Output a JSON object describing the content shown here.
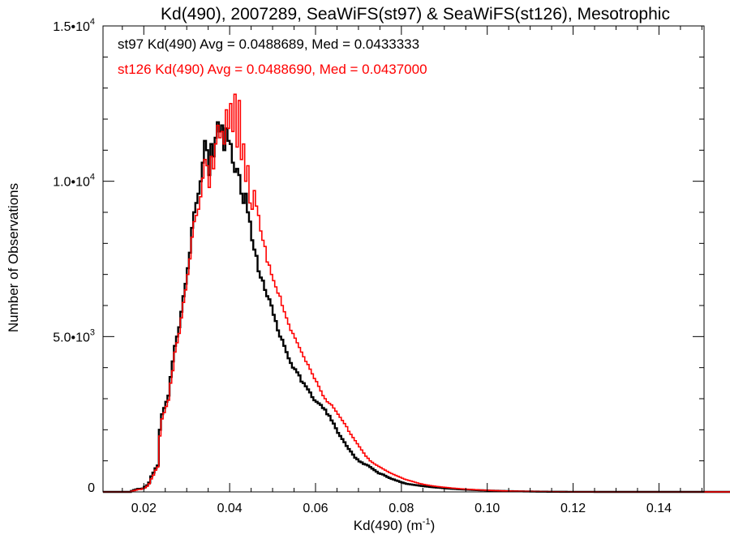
{
  "chart_data": {
    "type": "line",
    "step": true,
    "title": "Kd(490), 2007289, SeaWiFS(st97) & SeaWiFS(st126), Mesotrophic",
    "xlabel_main": "Kd(490) (m",
    "xlabel_sup": "-1",
    "xlabel_end": ")",
    "ylabel": "Number of Observations",
    "xlim": [
      0.0105,
      0.1505
    ],
    "ylim": [
      0,
      15000
    ],
    "xticks": [
      {
        "v": 0.02,
        "label": "0.02"
      },
      {
        "v": 0.04,
        "label": "0.04"
      },
      {
        "v": 0.06,
        "label": "0.06"
      },
      {
        "v": 0.08,
        "label": "0.08"
      },
      {
        "v": 0.1,
        "label": "0.10"
      },
      {
        "v": 0.12,
        "label": "0.12"
      },
      {
        "v": 0.14,
        "label": "0.14"
      }
    ],
    "yticks": [
      {
        "v": 0,
        "base": "0",
        "exp": ""
      },
      {
        "v": 5000,
        "base": "5.0•10",
        "exp": "3"
      },
      {
        "v": 10000,
        "base": "1.0•10",
        "exp": "4"
      },
      {
        "v": 15000,
        "base": "1.5•10",
        "exp": "4"
      }
    ],
    "annotations": [
      {
        "text": "st97 Kd(490) Avg = 0.0488689, Med = 0.0433333",
        "color": "#000000"
      },
      {
        "text": "st126 Kd(490) Avg = 0.0488690, Med = 0.0437000",
        "color": "#ff0000"
      }
    ],
    "bin_width": 0.0005,
    "x_start": 0.016,
    "series": [
      {
        "color": "#000000",
        "values": [
          0,
          0,
          30,
          60,
          80,
          100,
          100,
          110,
          160,
          210,
          300,
          500,
          620,
          760,
          850,
          2000,
          2500,
          2700,
          2900,
          3100,
          3700,
          4200,
          4700,
          5000,
          5300,
          5800,
          6300,
          6700,
          7200,
          7700,
          8500,
          9000,
          9300,
          9600,
          10000,
          10600,
          11300,
          11000,
          10200,
          11200,
          10800,
          11400,
          11900,
          11600,
          11800,
          11000,
          11700,
          11300,
          11200,
          10600,
          10300,
          10400,
          10200,
          9600,
          9300,
          9600,
          9000,
          8700,
          8100,
          7800,
          7600,
          7100,
          6900,
          6800,
          6500,
          6300,
          6200,
          6000,
          5700,
          5500,
          5200,
          5000,
          4900,
          4700,
          4500,
          4300,
          4150,
          4000,
          3950,
          3850,
          3750,
          3550,
          3500,
          3400,
          3300,
          3200,
          3050,
          2950,
          2900,
          2850,
          2800,
          2700,
          2650,
          2500,
          2450,
          2300,
          2200,
          2050,
          1900,
          1800,
          1700,
          1600,
          1480,
          1380,
          1300,
          1200,
          1100,
          1050,
          980,
          950,
          900,
          880,
          850,
          800,
          750,
          700,
          650,
          600,
          580,
          560,
          520,
          480,
          450,
          420,
          400,
          370,
          350,
          320,
          300,
          280,
          260,
          250,
          240,
          230,
          220,
          210,
          200,
          190,
          185,
          175,
          168,
          160,
          153,
          146,
          140,
          134,
          128,
          122,
          116,
          110,
          105,
          100,
          96,
          92,
          88,
          84,
          80,
          76,
          73,
          70,
          67,
          64,
          61,
          58,
          55,
          52,
          50,
          48,
          45,
          42,
          40,
          38,
          36,
          34,
          32,
          30,
          28,
          26,
          25,
          24,
          22,
          20,
          19,
          18,
          17,
          16,
          15,
          14,
          13,
          12,
          11,
          10,
          9,
          8,
          8,
          7,
          6,
          6,
          5,
          5,
          4,
          4,
          3,
          3,
          3,
          2,
          2,
          2,
          2,
          1,
          1,
          1,
          1,
          1,
          1,
          1,
          1,
          1,
          0,
          0,
          0,
          0,
          0,
          0,
          0,
          0,
          0,
          0,
          0,
          0,
          0,
          0,
          0,
          0,
          0,
          0,
          0,
          0,
          0,
          0,
          0,
          0,
          0,
          0,
          0,
          0,
          0,
          0,
          0,
          0,
          0,
          0,
          0,
          0,
          0,
          0,
          0,
          0,
          0,
          0,
          0,
          0,
          0,
          0,
          0,
          0,
          0,
          0,
          0,
          0,
          0,
          0,
          0,
          0,
          0,
          0,
          0,
          0,
          0,
          0,
          0,
          0,
          0,
          0,
          0,
          0,
          0,
          0
        ]
      },
      {
        "color": "#ff0000",
        "values": [
          0,
          0,
          20,
          40,
          60,
          80,
          80,
          100,
          130,
          180,
          260,
          420,
          540,
          700,
          800,
          1800,
          2350,
          2550,
          2750,
          2950,
          3500,
          3900,
          4500,
          4800,
          5100,
          5600,
          6100,
          6500,
          7000,
          7500,
          8200,
          8700,
          8900,
          9100,
          9500,
          10100,
          10700,
          10500,
          9800,
          10800,
          10400,
          11200,
          11800,
          11400,
          11600,
          11200,
          12300,
          11700,
          12500,
          11600,
          12800,
          11100,
          12600,
          10700,
          11200,
          10000,
          10500,
          9300,
          9100,
          9700,
          9200,
          8900,
          8400,
          8100,
          7900,
          7400,
          7300,
          7000,
          6800,
          6600,
          6400,
          6300,
          6000,
          5800,
          5600,
          5400,
          5200,
          5100,
          4950,
          4800,
          4650,
          4500,
          4350,
          4200,
          4100,
          3950,
          3800,
          3650,
          3550,
          3400,
          3250,
          3100,
          3000,
          2900,
          2850,
          2800,
          2700,
          2600,
          2500,
          2400,
          2300,
          2200,
          2100,
          1950,
          1850,
          1750,
          1650,
          1550,
          1450,
          1350,
          1250,
          1150,
          1080,
          1000,
          950,
          900,
          860,
          820,
          780,
          740,
          700,
          660,
          620,
          590,
          560,
          530,
          500,
          470,
          440,
          410,
          390,
          370,
          350,
          330,
          310,
          290,
          270,
          255,
          240,
          228,
          216,
          205,
          195,
          185,
          176,
          168,
          160,
          152,
          145,
          138,
          131,
          124,
          118,
          112,
          106,
          100,
          95,
          90,
          86,
          82,
          78,
          74,
          70,
          66,
          62,
          59,
          56,
          53,
          50,
          47,
          44,
          42,
          40,
          38,
          36,
          34,
          32,
          30,
          28,
          26,
          25,
          24,
          22,
          20,
          19,
          18,
          17,
          16,
          15,
          14,
          13,
          12,
          11,
          10,
          9,
          8,
          8,
          7,
          6,
          6,
          5,
          5,
          4,
          4,
          3,
          3,
          3,
          2,
          2,
          2,
          2,
          1,
          1,
          1,
          1,
          1,
          1,
          1,
          1,
          1,
          0,
          0,
          0,
          0,
          0,
          0,
          0,
          0,
          0,
          0,
          0,
          0,
          0,
          0,
          0,
          0,
          0,
          0,
          0,
          0,
          0,
          0,
          0,
          0,
          0,
          0,
          0,
          0,
          0,
          0,
          0,
          0,
          0,
          0,
          0,
          0,
          0,
          0,
          0,
          0,
          0,
          0,
          0,
          0,
          0,
          0,
          0,
          0,
          0,
          0,
          0,
          0,
          0,
          0,
          0,
          0,
          0,
          0,
          0,
          0,
          0,
          0,
          0,
          0,
          0,
          0,
          0,
          0,
          0,
          0
        ]
      }
    ]
  }
}
